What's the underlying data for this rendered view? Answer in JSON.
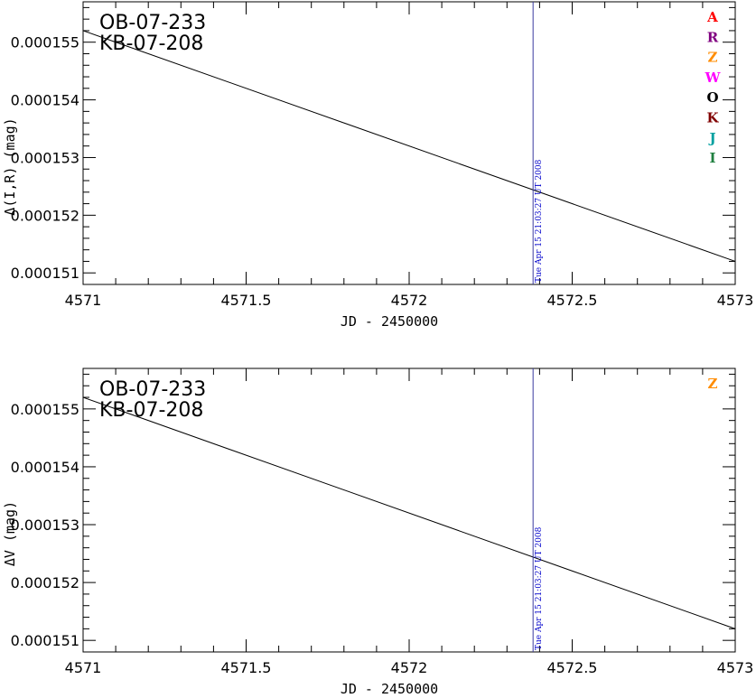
{
  "colors": {
    "event_line": "#3a3aa0",
    "event_label": "#0000cc",
    "model_line": "#000000"
  },
  "chart_data": [
    {
      "type": "line",
      "targets": [
        "OB-07-233",
        "KB-07-208"
      ],
      "xlabel": "JD - 2450000",
      "ylabel": "Δ(I,R) (mag)",
      "xlim": [
        4571,
        4573
      ],
      "ylim": [
        0.0001508,
        0.0001557
      ],
      "xticks": [
        4571,
        4571.5,
        4572,
        4572.5,
        4573
      ],
      "xtick_labels": [
        "4571",
        "4571.5",
        "4572",
        "4572.5",
        "4573"
      ],
      "yticks": [
        0.000151,
        0.000152,
        0.000153,
        0.000154,
        0.000155
      ],
      "ytick_labels": [
        "0.000151",
        "0.000152",
        "0.000153",
        "0.000154",
        "0.000155"
      ],
      "series": [
        {
          "x": [
            4571,
            4573
          ],
          "y": [
            0.0001552,
            0.0001512
          ]
        }
      ],
      "event": {
        "x": 4572.38,
        "label": "Tue Apr 15 21:03:27 UT 2008"
      },
      "legend": [
        {
          "label": "A",
          "color": "#ff0000"
        },
        {
          "label": "R",
          "color": "#800080"
        },
        {
          "label": "Z",
          "color": "#ff8c00"
        },
        {
          "label": "W",
          "color": "#ff00ff"
        },
        {
          "label": "O",
          "color": "#000000"
        },
        {
          "label": "K",
          "color": "#800000"
        },
        {
          "label": "J",
          "color": "#00a0a0"
        },
        {
          "label": "I",
          "color": "#208040"
        }
      ],
      "legend_placement": "top-right"
    },
    {
      "type": "line",
      "targets": [
        "OB-07-233",
        "KB-07-208"
      ],
      "xlabel": "JD - 2450000",
      "ylabel": "ΔV (mag)",
      "xlim": [
        4571,
        4573
      ],
      "ylim": [
        0.0001508,
        0.0001557
      ],
      "xticks": [
        4571,
        4571.5,
        4572,
        4572.5,
        4573
      ],
      "xtick_labels": [
        "4571",
        "4571.5",
        "4572",
        "4572.5",
        "4573"
      ],
      "yticks": [
        0.000151,
        0.000152,
        0.000153,
        0.000154,
        0.000155
      ],
      "ytick_labels": [
        "0.000151",
        "0.000152",
        "0.000153",
        "0.000154",
        "0.000155"
      ],
      "series": [
        {
          "x": [
            4571,
            4573
          ],
          "y": [
            0.0001552,
            0.0001512
          ]
        }
      ],
      "event": {
        "x": 4572.38,
        "label": "Tue Apr 15 21:03:27 UT 2008"
      },
      "legend": [
        {
          "label": "Z",
          "color": "#ff8c00"
        }
      ],
      "legend_placement": "top-right"
    }
  ]
}
